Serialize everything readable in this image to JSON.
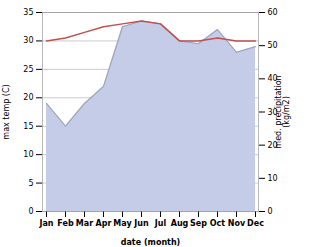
{
  "chart_data": {
    "type": "line",
    "xlabel": "date (month)",
    "ylabel": "max temp (C)",
    "y2label": "med. precipitation\n(kg/m2)",
    "categories": [
      "Jan",
      "Feb",
      "Mar",
      "Apr",
      "May",
      "Jun",
      "Jul",
      "Aug",
      "Sep",
      "Oct",
      "Nov",
      "Dec"
    ],
    "series": [
      {
        "type": "area",
        "color": "#c5cce8",
        "values": [
          19.0,
          15.0,
          19.0,
          22.0,
          32.5,
          33.5,
          33.0,
          30.0,
          29.5,
          32.0,
          28.0,
          29.0
        ]
      },
      {
        "type": "line",
        "color": "#c0504d",
        "values": [
          30.0,
          30.5,
          31.5,
          32.5,
          33.0,
          33.5,
          33.0,
          30.0,
          30.0,
          30.5,
          30.0,
          30.0
        ]
      }
    ],
    "ylim": [
      0,
      35
    ],
    "yticks": [
      0,
      5,
      10,
      15,
      20,
      25,
      30,
      35
    ],
    "y2lim": [
      0,
      60
    ],
    "y2ticks": [
      0,
      10,
      20,
      30,
      40,
      50,
      60
    ],
    "grid": true
  }
}
